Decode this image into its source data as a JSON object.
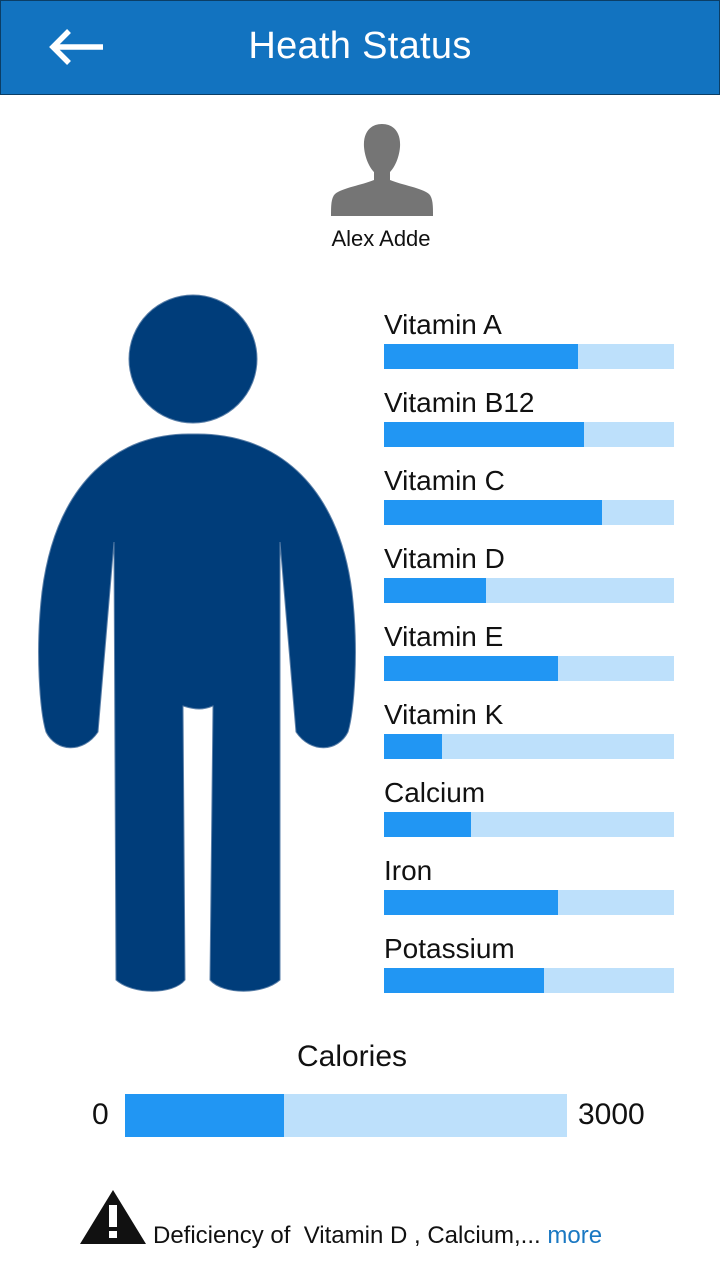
{
  "header": {
    "title": "Heath Status",
    "back_icon": "arrow-left-icon",
    "background": "#1273c0"
  },
  "user": {
    "name": "Alex Adde",
    "avatar_icon": "person-icon"
  },
  "colors": {
    "bar_fill": "#2196f3",
    "bar_track": "#bde0fb",
    "body": "#003d7a",
    "link": "#1a78c2"
  },
  "nutrients": [
    {
      "label": "Vitamin A",
      "level": 0.67
    },
    {
      "label": "Vitamin B12",
      "level": 0.69
    },
    {
      "label": "Vitamin C",
      "level": 0.75
    },
    {
      "label": "Vitamin D",
      "level": 0.35
    },
    {
      "label": "Vitamin E",
      "level": 0.6
    },
    {
      "label": "Vitamin K",
      "level": 0.2
    },
    {
      "label": "Calcium",
      "level": 0.3
    },
    {
      "label": "Iron",
      "level": 0.6
    },
    {
      "label": "Potassium",
      "level": 0.55
    }
  ],
  "calories": {
    "title": "Calories",
    "min_label": "0",
    "max_label": "3000",
    "level": 0.36
  },
  "warning": {
    "icon": "warning-icon",
    "text": "Deficiency of  Vitamin D , Calcium,... ",
    "more_label": "more"
  }
}
